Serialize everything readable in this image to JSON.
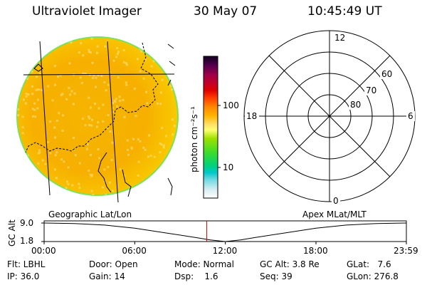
{
  "header": {
    "instrument": "Ultraviolet Imager",
    "date": "30 May 07",
    "time": "10:45:49 UT"
  },
  "colorbar": {
    "label": "photon cm⁻²s⁻¹",
    "ticks": [
      "100",
      "10"
    ]
  },
  "polar_plot": {
    "mlt_labels": {
      "top": "12",
      "left": "18",
      "right": "6",
      "bottom": "0"
    },
    "lat_labels": [
      "60",
      "70",
      "80"
    ]
  },
  "panel_labels": {
    "left": "Geographic Lat/Lon",
    "right": "Apex MLat/MLT"
  },
  "chart_data": {
    "type": "line",
    "ylabel": "GC Alt",
    "yticks": [
      "9.0",
      "1.8"
    ],
    "ylim": [
      1.8,
      9.0
    ],
    "x_tick_labels": [
      "00:00",
      "06:00",
      "12:00",
      "18:00",
      "23:59"
    ],
    "x_hours": [
      0,
      6,
      12,
      18,
      23.983
    ],
    "series": [
      {
        "x": [
          0,
          2,
          4,
          6,
          8,
          10,
          11,
          12,
          13,
          14,
          16,
          18,
          20,
          22,
          23.983
        ],
        "values": [
          9.0,
          8.8,
          8.2,
          7.0,
          5.2,
          3.4,
          2.4,
          1.8,
          2.4,
          3.4,
          5.2,
          7.0,
          8.2,
          8.8,
          9.0
        ]
      }
    ],
    "current_time_hours": 10.763,
    "current_time_color": "#cc0000"
  },
  "footer": {
    "rows": [
      [
        "Flt: LBHL",
        "Door: Open",
        "Mode: Normal",
        "GC Alt: 3.8 Re",
        "GLat:   7.6"
      ],
      [
        "IP: 36.0",
        "Gain: 14",
        "Dsp:    1.6",
        "Seq: 39",
        "GLon: 276.8"
      ]
    ]
  }
}
